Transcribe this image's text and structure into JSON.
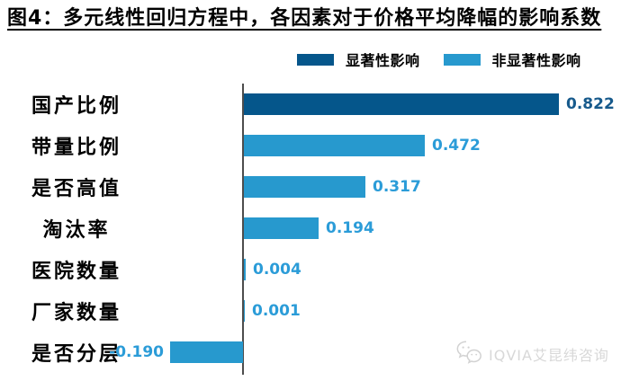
{
  "title": "图4：多元线性回归方程中，各因素对于价格平均降幅的影响系数",
  "legend": {
    "items": [
      {
        "label": "显著性影响",
        "color": "#05568B"
      },
      {
        "label": "非显著性影响",
        "color": "#2799CE"
      }
    ]
  },
  "chart_data": {
    "type": "bar",
    "orientation": "horizontal",
    "title": "图4：多元线性回归方程中，各因素对于价格平均降幅的影响系数",
    "categories": [
      "国产比例",
      "带量比例",
      "是否高值",
      "淘汰率",
      "医院数量",
      "厂家数量",
      "是否分层"
    ],
    "values": [
      0.822,
      0.472,
      0.317,
      0.194,
      0.004,
      0.001,
      -0.19
    ],
    "value_labels": [
      "0.822",
      "0.472",
      "0.317",
      "0.194",
      "0.004",
      "0.001",
      "-0.190"
    ],
    "significant": [
      true,
      false,
      false,
      false,
      false,
      false,
      false
    ],
    "series": [
      {
        "name": "显著性影响",
        "color": "#05568B",
        "values": [
          0.822,
          null,
          null,
          null,
          null,
          null,
          null
        ]
      },
      {
        "name": "非显著性影响",
        "color": "#2799CE",
        "values": [
          null,
          0.472,
          0.317,
          0.194,
          0.004,
          0.001,
          -0.19
        ]
      }
    ],
    "series_colors": {
      "significant": "#05568B",
      "non_significant": "#2799CE"
    },
    "value_label_colors": {
      "significant": "#175A8C",
      "non_significant": "#2B9CD8"
    },
    "xlabel": "",
    "ylabel": "",
    "xlim": [
      -0.25,
      1.0
    ],
    "grid": false,
    "legend_position": "top",
    "axis_color": "#4d4d4d"
  },
  "watermark": {
    "icon": "wechat-icon",
    "text": "IQVIA艾昆纬咨询",
    "color": "#d8d8d8"
  }
}
